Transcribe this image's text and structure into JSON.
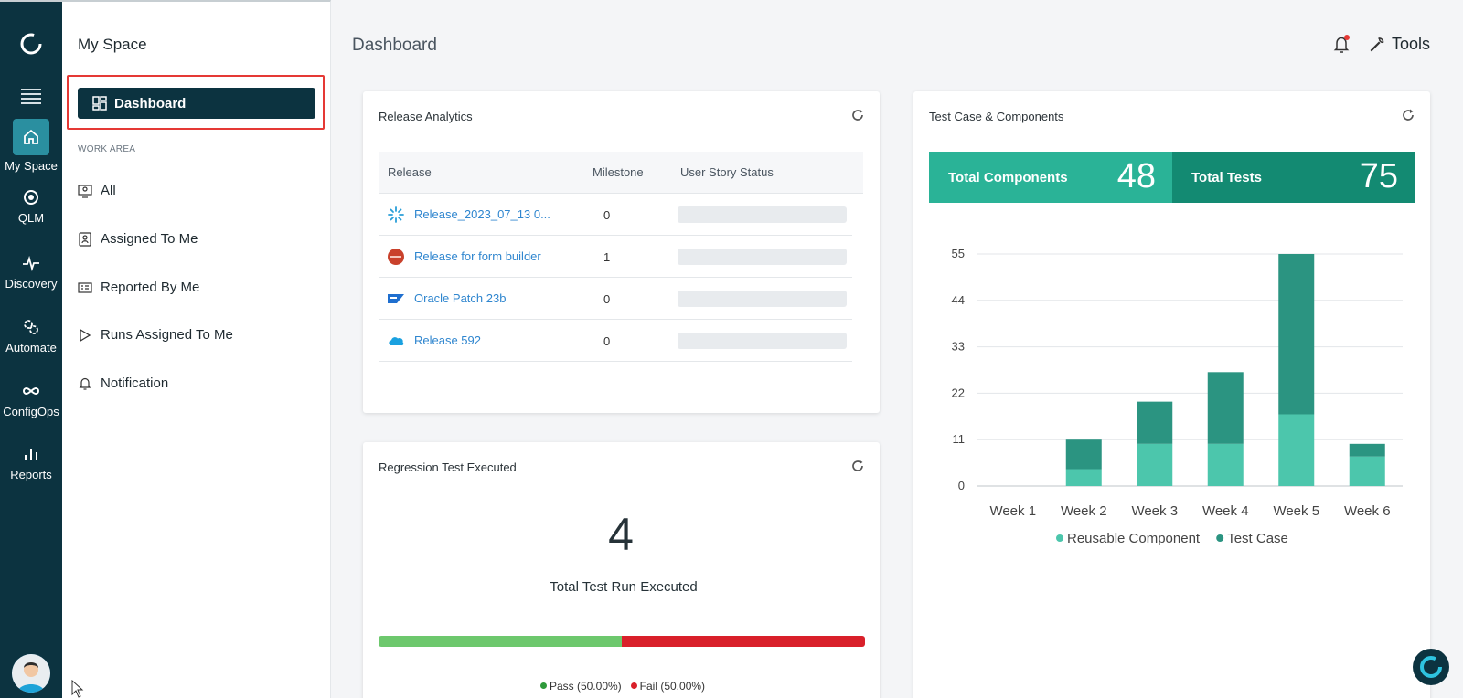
{
  "rail": {
    "items": [
      {
        "label": "My Space",
        "icon": "home-icon"
      },
      {
        "label": "QLM",
        "icon": "target-icon"
      },
      {
        "label": "Discovery",
        "icon": "pulse-icon"
      },
      {
        "label": "Automate",
        "icon": "gears-icon"
      },
      {
        "label": "ConfigOps",
        "icon": "infinity-icon"
      },
      {
        "label": "Reports",
        "icon": "bar-chart-icon"
      }
    ]
  },
  "sidebar": {
    "title": "My Space",
    "active": "Dashboard",
    "section": "WORK AREA",
    "items": [
      {
        "label": "All"
      },
      {
        "label": "Assigned To Me"
      },
      {
        "label": "Reported By Me"
      },
      {
        "label": "Runs Assigned To Me"
      },
      {
        "label": "Notification"
      }
    ]
  },
  "header": {
    "title": "Dashboard",
    "tools": "Tools"
  },
  "release_analytics": {
    "title": "Release Analytics",
    "columns": [
      "Release",
      "Milestone",
      "User Story Status"
    ],
    "rows": [
      {
        "name": "Release_2023_07_13 0...",
        "milestone": "0",
        "logo": "spark-logo"
      },
      {
        "name": "Release for form builder",
        "milestone": "1",
        "logo": "red-circle-logo"
      },
      {
        "name": "Oracle Patch 23b",
        "milestone": "0",
        "logo": "sap-logo"
      },
      {
        "name": "Release 592",
        "milestone": "0",
        "logo": "salesforce-cloud-logo"
      }
    ]
  },
  "regression": {
    "title": "Regression Test Executed",
    "total": "4",
    "subtitle": "Total Test Run Executed",
    "pass_fraction": 0.5,
    "pass_label": "Pass (50.00%)",
    "fail_label": "Fail (50.00%)",
    "colors": {
      "pass": "#6dc86d",
      "fail": "#d9202a"
    }
  },
  "test_case": {
    "title": "Test Case & Components",
    "components_label": "Total Components",
    "components_value": "48",
    "tests_label": "Total Tests",
    "tests_value": "75",
    "colors": {
      "components": "#2ab397",
      "tests": "#138a72"
    }
  },
  "chart_data": {
    "type": "bar",
    "stacked": true,
    "categories": [
      "Week 1",
      "Week 2",
      "Week 3",
      "Week 4",
      "Week 5",
      "Week 6"
    ],
    "series": [
      {
        "name": "Reusable Component",
        "color": "#4cc6ac",
        "values": [
          0,
          4,
          10,
          10,
          17,
          7
        ]
      },
      {
        "name": "Test Case",
        "color": "#2b9481",
        "values": [
          0,
          7,
          10,
          17,
          38,
          3
        ]
      }
    ],
    "yticks": [
      0,
      11,
      22,
      33,
      44,
      55
    ],
    "ylim": [
      0,
      55
    ],
    "grid": true,
    "legend": "bottom"
  }
}
